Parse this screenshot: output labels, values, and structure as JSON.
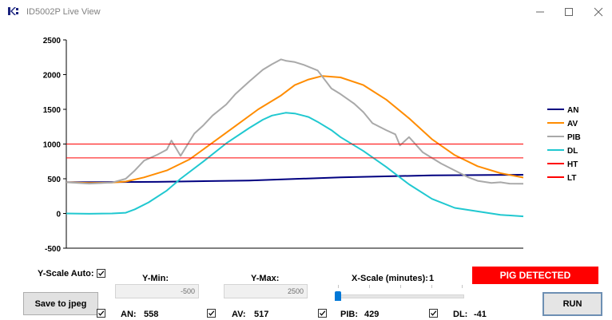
{
  "window": {
    "title": "ID5002P Live View",
    "minimize_icon": "minimize-icon",
    "maximize_icon": "maximize-icon",
    "close_icon": "close-icon"
  },
  "controls": {
    "yscale_auto_label": "Y-Scale Auto:",
    "yscale_auto_checked": true,
    "ymin_label": "Y-Min:",
    "ymin_value": "-500",
    "ymax_label": "Y-Max:",
    "ymax_value": "2500",
    "xscale_label": "X-Scale (minutes):",
    "xscale_value": "1",
    "xscale_slider_position": 0,
    "alarm_text": "PIG DETECTED",
    "save_button": "Save to jpeg",
    "run_button": "RUN"
  },
  "readouts": [
    {
      "label": "AN:",
      "value": "558",
      "checked": true
    },
    {
      "label": "AV:",
      "value": "517",
      "checked": true
    },
    {
      "label": "PIB:",
      "value": "429",
      "checked": true
    },
    {
      "label": "DL:",
      "value": "-41",
      "checked": true
    }
  ],
  "colors": {
    "AN": "#000080",
    "AV": "#ff8c00",
    "PIB": "#a9a9a9",
    "DL": "#20c8d0",
    "HT": "#ff0000",
    "LT": "#ff0000",
    "alarm": "#ff0000"
  },
  "chart_data": {
    "type": "line",
    "ylim": [
      -500,
      2500
    ],
    "yticks": [
      -500,
      0,
      500,
      1000,
      1500,
      2000,
      2500
    ],
    "xlim": [
      0,
      100
    ],
    "grid": false,
    "legend_position": "right",
    "series": [
      {
        "name": "AN",
        "x": [
          0,
          20,
          40,
          60,
          80,
          100
        ],
        "y": [
          450,
          455,
          475,
          520,
          550,
          558
        ]
      },
      {
        "name": "AV",
        "x": [
          0,
          5,
          10,
          13,
          17,
          22,
          27,
          32,
          37,
          42,
          47,
          50,
          53,
          56,
          60,
          65,
          70,
          75,
          80,
          85,
          90,
          95,
          100
        ],
        "y": [
          450,
          440,
          445,
          460,
          520,
          620,
          780,
          1020,
          1260,
          1500,
          1700,
          1850,
          1930,
          1980,
          1960,
          1850,
          1640,
          1370,
          1070,
          840,
          680,
          580,
          517
        ]
      },
      {
        "name": "PIB",
        "x": [
          0,
          5,
          10,
          13,
          15,
          17,
          20,
          22,
          23,
          25,
          28,
          30,
          32,
          35,
          37,
          40,
          43,
          45,
          47,
          48,
          50,
          52,
          55,
          58,
          60,
          63,
          65,
          67,
          70,
          72,
          73,
          75,
          78,
          80,
          82,
          85,
          88,
          90,
          93,
          95,
          97,
          100
        ],
        "y": [
          450,
          430,
          445,
          500,
          620,
          760,
          850,
          920,
          1050,
          830,
          1150,
          1270,
          1410,
          1570,
          1720,
          1900,
          2070,
          2150,
          2220,
          2200,
          2180,
          2140,
          2060,
          1800,
          1720,
          1580,
          1460,
          1300,
          1200,
          1140,
          980,
          1100,
          880,
          800,
          720,
          620,
          520,
          470,
          440,
          450,
          430,
          429
        ]
      },
      {
        "name": "DL",
        "x": [
          0,
          5,
          10,
          13,
          15,
          18,
          22,
          25,
          30,
          35,
          40,
          43,
          45,
          48,
          50,
          53,
          55,
          58,
          60,
          65,
          70,
          75,
          80,
          85,
          90,
          95,
          100
        ],
        "y": [
          0,
          -5,
          0,
          10,
          60,
          160,
          330,
          500,
          750,
          1010,
          1230,
          1350,
          1410,
          1450,
          1440,
          1390,
          1320,
          1200,
          1100,
          900,
          670,
          420,
          210,
          80,
          30,
          -20,
          -41
        ]
      },
      {
        "name": "HT",
        "x": [
          0,
          100
        ],
        "y": [
          1000,
          1000
        ]
      },
      {
        "name": "LT",
        "x": [
          0,
          100
        ],
        "y": [
          800,
          800
        ]
      }
    ]
  }
}
